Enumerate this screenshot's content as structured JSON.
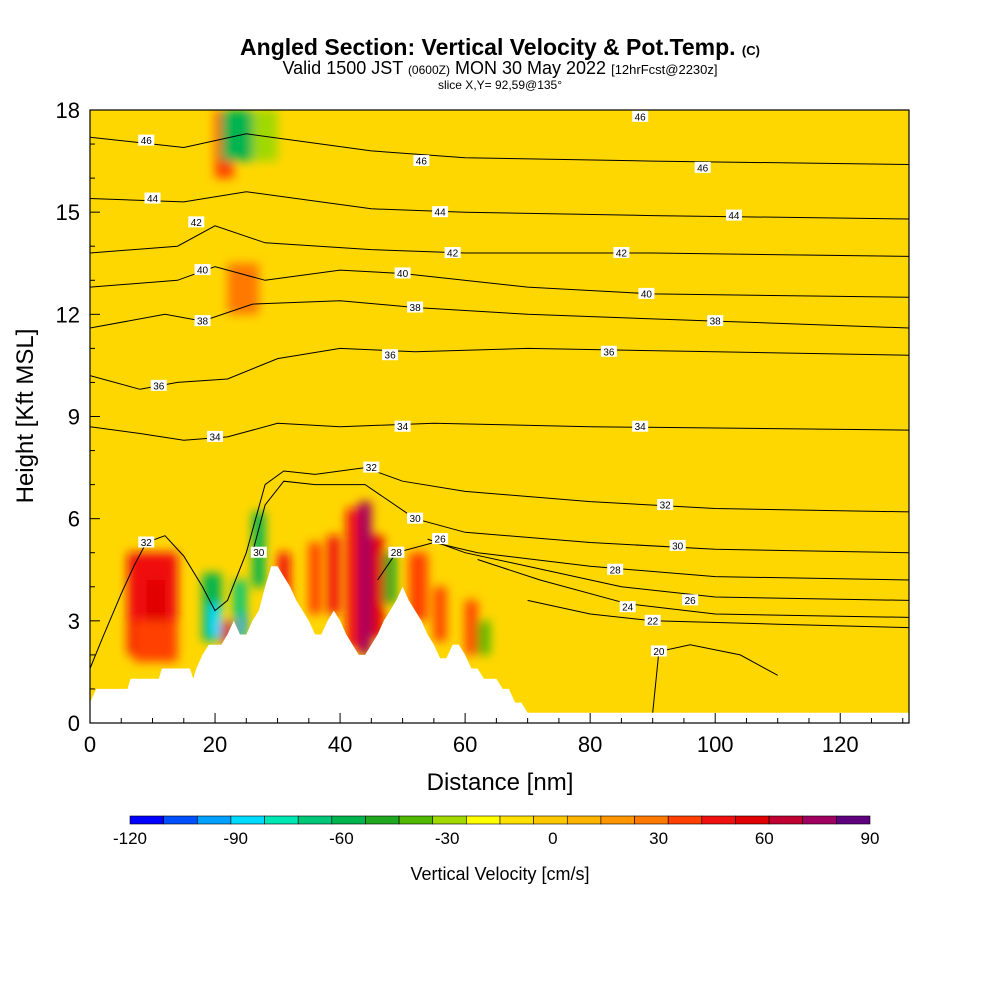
{
  "header": {
    "title": "Angled Section: Vertical Velocity & Pot.Temp.",
    "copyright": "(C)",
    "subtitle_pre": "Valid 1500 JST",
    "subtitle_small1": "(0600Z)",
    "subtitle_mid": "MON 30 May 2022",
    "subtitle_small2": "[12hrFcst@2230z]",
    "slice": "slice X,Y= 92,59@135°"
  },
  "colors": {
    "background_field": "#FFD700",
    "terrain": "#FFFFFF",
    "contour": "#000000"
  },
  "chart_data": {
    "type": "heatmap",
    "title": "Angled Section: Vertical Velocity & Pot.Temp.",
    "xlabel": "Distance [nm]",
    "ylabel": "Height [Kft MSL]",
    "xlim": [
      0,
      131
    ],
    "ylim": [
      0,
      18
    ],
    "x_ticks": [
      "0",
      "20",
      "40",
      "60",
      "80",
      "100",
      "120"
    ],
    "y_ticks": [
      "0",
      "3",
      "6",
      "9",
      "12",
      "15",
      "18"
    ],
    "colorbar": {
      "label": "Vertical Velocity [cm/s]",
      "ticks": [
        "-120",
        "-90",
        "-60",
        "-30",
        "0",
        "30",
        "60",
        "90"
      ],
      "min": -120,
      "max": 90,
      "step": 10,
      "colors": [
        "#0000FF",
        "#0050FF",
        "#00A0FF",
        "#00DCFF",
        "#00E6B4",
        "#00C878",
        "#00B450",
        "#20A820",
        "#50B800",
        "#A0D800",
        "#FFFF00",
        "#FFE000",
        "#FFC800",
        "#FFB400",
        "#FF9600",
        "#FF7800",
        "#FF4000",
        "#F01010",
        "#E00000",
        "#C00030",
        "#A00060",
        "#600080"
      ]
    },
    "terrain_profile": {
      "x": [
        0,
        1,
        2,
        6,
        6.5,
        11,
        11.5,
        16,
        16.5,
        17,
        18,
        19,
        20,
        21,
        22,
        23,
        24,
        25,
        26,
        27,
        28,
        29,
        30,
        31,
        32,
        33,
        34,
        35,
        36,
        37,
        38,
        39,
        40,
        41,
        42,
        43,
        44,
        45,
        46,
        47,
        48,
        49,
        50,
        51,
        52,
        53,
        54,
        55,
        56,
        57,
        58,
        59,
        60,
        61,
        62,
        63,
        64,
        65,
        66,
        67,
        68,
        69,
        70,
        71,
        72,
        131
      ],
      "height": [
        0.6,
        1.0,
        1.0,
        1.0,
        1.3,
        1.3,
        1.6,
        1.6,
        1.3,
        1.6,
        2.0,
        2.3,
        2.3,
        2.3,
        2.6,
        3.0,
        2.6,
        2.6,
        3.0,
        3.3,
        4.0,
        4.6,
        4.6,
        4.3,
        4.0,
        3.6,
        3.3,
        3.0,
        2.6,
        2.6,
        3.0,
        3.3,
        3.0,
        2.6,
        2.3,
        2.0,
        2.0,
        2.3,
        2.6,
        3.0,
        3.3,
        3.6,
        4.0,
        3.6,
        3.3,
        3.0,
        2.6,
        2.3,
        1.9,
        1.9,
        2.3,
        2.3,
        2.0,
        1.6,
        1.6,
        1.3,
        1.3,
        1.3,
        1.0,
        1.0,
        0.6,
        0.6,
        0.3,
        0.3,
        0.3,
        0.3
      ]
    },
    "theta_contours": [
      {
        "label": "46",
        "label_pos": [
          [
            9,
            17.1
          ],
          [
            53,
            16.5
          ],
          [
            98,
            16.3
          ],
          [
            88,
            17.8
          ]
        ],
        "points": [
          [
            0,
            17.2
          ],
          [
            15,
            16.9
          ],
          [
            25,
            17.3
          ],
          [
            45,
            16.8
          ],
          [
            60,
            16.6
          ],
          [
            90,
            16.5
          ],
          [
            131,
            16.4
          ]
        ]
      },
      {
        "label": "44",
        "label_pos": [
          [
            10,
            15.4
          ],
          [
            56,
            15.0
          ],
          [
            103,
            14.9
          ]
        ],
        "points": [
          [
            0,
            15.4
          ],
          [
            15,
            15.3
          ],
          [
            25,
            15.6
          ],
          [
            45,
            15.1
          ],
          [
            60,
            15.0
          ],
          [
            90,
            14.9
          ],
          [
            131,
            14.8
          ]
        ]
      },
      {
        "label": "42",
        "label_pos": [
          [
            17,
            14.7
          ],
          [
            58,
            13.8
          ],
          [
            85,
            13.8
          ]
        ],
        "points": [
          [
            0,
            13.8
          ],
          [
            14,
            14.0
          ],
          [
            20,
            14.6
          ],
          [
            28,
            14.1
          ],
          [
            45,
            13.9
          ],
          [
            60,
            13.8
          ],
          [
            90,
            13.8
          ],
          [
            131,
            13.7
          ]
        ]
      },
      {
        "label": "40",
        "label_pos": [
          [
            18,
            13.3
          ],
          [
            50,
            13.2
          ],
          [
            89,
            12.6
          ]
        ],
        "points": [
          [
            0,
            12.8
          ],
          [
            14,
            13.0
          ],
          [
            20,
            13.4
          ],
          [
            28,
            13.0
          ],
          [
            40,
            13.3
          ],
          [
            50,
            13.2
          ],
          [
            70,
            12.8
          ],
          [
            90,
            12.6
          ],
          [
            131,
            12.5
          ]
        ]
      },
      {
        "label": "38",
        "label_pos": [
          [
            18,
            11.8
          ],
          [
            52,
            12.2
          ],
          [
            100,
            11.8
          ]
        ],
        "points": [
          [
            0,
            11.6
          ],
          [
            12,
            12.0
          ],
          [
            18,
            11.8
          ],
          [
            26,
            12.3
          ],
          [
            40,
            12.4
          ],
          [
            52,
            12.2
          ],
          [
            70,
            12.0
          ],
          [
            100,
            11.8
          ],
          [
            131,
            11.6
          ]
        ]
      },
      {
        "label": "36",
        "label_pos": [
          [
            11,
            9.9
          ],
          [
            48,
            10.8
          ],
          [
            83,
            10.9
          ]
        ],
        "points": [
          [
            0,
            10.2
          ],
          [
            8,
            9.8
          ],
          [
            14,
            10.0
          ],
          [
            22,
            10.1
          ],
          [
            30,
            10.7
          ],
          [
            40,
            11.0
          ],
          [
            52,
            10.9
          ],
          [
            70,
            11.0
          ],
          [
            100,
            10.9
          ],
          [
            131,
            10.8
          ]
        ]
      },
      {
        "label": "34",
        "label_pos": [
          [
            20,
            8.4
          ],
          [
            50,
            8.7
          ],
          [
            88,
            8.7
          ]
        ],
        "points": [
          [
            0,
            8.7
          ],
          [
            8,
            8.5
          ],
          [
            15,
            8.3
          ],
          [
            22,
            8.4
          ],
          [
            30,
            8.8
          ],
          [
            40,
            8.7
          ],
          [
            55,
            8.8
          ],
          [
            80,
            8.7
          ],
          [
            131,
            8.6
          ]
        ]
      },
      {
        "label": "32",
        "label_pos": [
          [
            9,
            5.3
          ],
          [
            45,
            7.5
          ],
          [
            92,
            6.4
          ]
        ],
        "points": [
          [
            0,
            1.6
          ],
          [
            2,
            2.5
          ],
          [
            5,
            3.8
          ],
          [
            7,
            4.6
          ],
          [
            9,
            5.3
          ],
          [
            12,
            5.5
          ],
          [
            15,
            4.9
          ],
          [
            18,
            4.0
          ],
          [
            20,
            3.3
          ],
          [
            22,
            3.6
          ],
          [
            25,
            5.0
          ],
          [
            28,
            7.0
          ],
          [
            31,
            7.4
          ],
          [
            36,
            7.3
          ],
          [
            44,
            7.5
          ],
          [
            50,
            7.1
          ],
          [
            60,
            6.8
          ],
          [
            80,
            6.5
          ],
          [
            100,
            6.3
          ],
          [
            131,
            6.2
          ]
        ]
      },
      {
        "label": "30",
        "label_pos": [
          [
            27,
            5.0
          ],
          [
            52,
            6.0
          ],
          [
            94,
            5.2
          ]
        ],
        "points": [
          [
            26,
            5.0
          ],
          [
            28,
            6.4
          ],
          [
            31,
            7.1
          ],
          [
            36,
            7.0
          ],
          [
            44,
            7.0
          ],
          [
            52,
            6.0
          ],
          [
            60,
            5.6
          ],
          [
            80,
            5.3
          ],
          [
            100,
            5.1
          ],
          [
            131,
            5.0
          ]
        ]
      },
      {
        "label": "28",
        "label_pos": [
          [
            49,
            5.0
          ],
          [
            84,
            4.5
          ]
        ],
        "points": [
          [
            46,
            4.2
          ],
          [
            49,
            5.0
          ],
          [
            55,
            5.3
          ],
          [
            62,
            5.0
          ],
          [
            80,
            4.6
          ],
          [
            100,
            4.3
          ],
          [
            131,
            4.2
          ]
        ]
      },
      {
        "label": "26",
        "label_pos": [
          [
            56,
            5.4
          ],
          [
            96,
            3.6
          ]
        ],
        "points": [
          [
            54,
            5.4
          ],
          [
            60,
            5.0
          ],
          [
            70,
            4.6
          ],
          [
            85,
            4.0
          ],
          [
            100,
            3.7
          ],
          [
            131,
            3.6
          ]
        ]
      },
      {
        "label": "24",
        "label_pos": [
          [
            86,
            3.4
          ]
        ],
        "points": [
          [
            62,
            4.8
          ],
          [
            72,
            4.2
          ],
          [
            86,
            3.5
          ],
          [
            100,
            3.2
          ],
          [
            131,
            3.1
          ]
        ]
      },
      {
        "label": "22",
        "label_pos": [
          [
            90,
            3.0
          ]
        ],
        "points": [
          [
            70,
            3.6
          ],
          [
            80,
            3.2
          ],
          [
            90,
            3.0
          ],
          [
            110,
            2.9
          ],
          [
            131,
            2.8
          ]
        ]
      },
      {
        "label": "20",
        "label_pos": [
          [
            91,
            2.1
          ]
        ],
        "points": [
          [
            90,
            0.3
          ],
          [
            91,
            2.1
          ],
          [
            96,
            2.3
          ],
          [
            104,
            2.0
          ],
          [
            110,
            1.4
          ]
        ]
      }
    ],
    "velocity_cells": [
      {
        "x": [
          6,
          14
        ],
        "y": [
          2.0,
          5.0
        ],
        "value": 50
      },
      {
        "x": [
          9,
          12
        ],
        "y": [
          2.3,
          4.2
        ],
        "value": 60
      },
      {
        "x": [
          18,
          21
        ],
        "y": [
          2.4,
          4.4
        ],
        "value": -60
      },
      {
        "x": [
          19,
          21
        ],
        "y": [
          2.5,
          3.5
        ],
        "value": -90
      },
      {
        "x": [
          21,
          23
        ],
        "y": [
          2.3,
          3.0
        ],
        "value": 60
      },
      {
        "x": [
          23,
          25
        ],
        "y": [
          2.4,
          4.2
        ],
        "value": -70
      },
      {
        "x": [
          24,
          25
        ],
        "y": [
          2.6,
          3.2
        ],
        "value": -100
      },
      {
        "x": [
          26,
          28
        ],
        "y": [
          4.0,
          6.2
        ],
        "value": -60
      },
      {
        "x": [
          30,
          32
        ],
        "y": [
          3.0,
          5.0
        ],
        "value": 50
      },
      {
        "x": [
          35,
          37
        ],
        "y": [
          3.2,
          5.3
        ],
        "value": 40
      },
      {
        "x": [
          38,
          40
        ],
        "y": [
          3.2,
          5.5
        ],
        "value": 50
      },
      {
        "x": [
          41,
          43
        ],
        "y": [
          2.2,
          6.3
        ],
        "value": 50
      },
      {
        "x": [
          43,
          45
        ],
        "y": [
          2.0,
          6.5
        ],
        "value": 80
      },
      {
        "x": [
          45,
          47
        ],
        "y": [
          2.5,
          5.5
        ],
        "value": 60
      },
      {
        "x": [
          47,
          49
        ],
        "y": [
          3.5,
          5.0
        ],
        "value": -50
      },
      {
        "x": [
          51,
          54
        ],
        "y": [
          3.0,
          5.0
        ],
        "value": 40
      },
      {
        "x": [
          55,
          57
        ],
        "y": [
          2.4,
          4.0
        ],
        "value": 40
      },
      {
        "x": [
          60,
          62
        ],
        "y": [
          2.0,
          3.6
        ],
        "value": 40
      },
      {
        "x": [
          62,
          64
        ],
        "y": [
          2.0,
          3.0
        ],
        "value": -40
      },
      {
        "x": [
          22,
          27
        ],
        "y": [
          12.0,
          13.5
        ],
        "value": 30
      },
      {
        "x": [
          20,
          23
        ],
        "y": [
          16.0,
          18.0
        ],
        "value": 40
      },
      {
        "x": [
          21,
          26
        ],
        "y": [
          16.5,
          18.0
        ],
        "value": -60
      },
      {
        "x": [
          26,
          30
        ],
        "y": [
          16.5,
          18.0
        ],
        "value": -30
      },
      {
        "x": [
          7,
          14
        ],
        "y": [
          1.8,
          3.0
        ],
        "value": 40
      }
    ]
  }
}
